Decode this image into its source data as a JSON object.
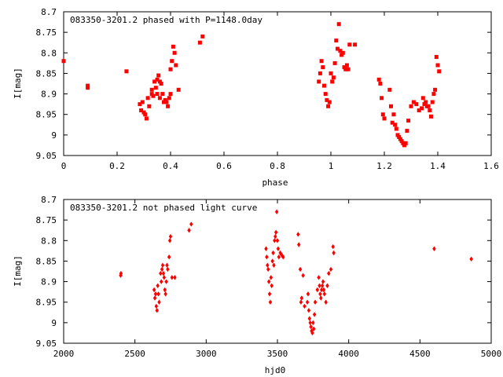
{
  "chart_data": [
    {
      "type": "scatter",
      "title": "083350-3201.2 phased with P=1148.0day",
      "xlabel": "phase",
      "ylabel": "I[mag]",
      "xlim": [
        0,
        1.6
      ],
      "ylim": [
        9.05,
        8.7
      ],
      "y_inverted": true,
      "grid": false,
      "legend": "none",
      "marker_color": "#ff0000",
      "x_ticks": [
        "0",
        "0.2",
        "0.4",
        "0.6",
        "0.8",
        "1",
        "1.2",
        "1.4",
        "1.6"
      ],
      "y_ticks": [
        "8.7",
        "8.75",
        "8.8",
        "8.85",
        "8.9",
        "8.95",
        "9",
        "9.05"
      ],
      "series": [
        {
          "x": [
            0.0,
            0.09,
            0.09,
            0.235,
            0.285,
            0.29,
            0.295,
            0.3,
            0.305,
            0.31,
            0.315,
            0.32,
            0.33,
            0.33,
            0.335,
            0.34,
            0.345,
            0.35,
            0.35,
            0.355,
            0.36,
            0.36,
            0.365,
            0.37,
            0.375,
            0.38,
            0.385,
            0.39,
            0.395,
            0.4,
            0.4,
            0.405,
            0.41,
            0.415,
            0.42,
            0.43,
            0.51,
            0.52,
            0.955,
            0.96,
            0.965,
            0.97,
            0.975,
            0.98,
            0.985,
            0.99,
            0.995,
            1.0,
            1.005,
            1.01,
            1.015,
            1.02,
            1.025,
            1.03,
            1.035,
            1.04,
            1.045,
            1.05,
            1.055,
            1.06,
            1.065,
            1.07,
            1.09,
            1.18,
            1.185,
            1.19,
            1.195,
            1.2,
            1.22,
            1.225,
            1.23,
            1.235,
            1.24,
            1.245,
            1.25,
            1.255,
            1.26,
            1.265,
            1.27,
            1.275,
            1.28,
            1.285,
            1.29,
            1.3,
            1.31,
            1.32,
            1.33,
            1.34,
            1.345,
            1.35,
            1.355,
            1.36,
            1.365,
            1.37,
            1.375,
            1.38,
            1.385,
            1.39,
            1.395,
            1.4,
            1.405
          ],
          "y": [
            8.82,
            8.88,
            8.885,
            8.845,
            8.925,
            8.94,
            8.92,
            8.945,
            8.95,
            8.96,
            8.91,
            8.93,
            8.9,
            8.89,
            8.905,
            8.87,
            8.885,
            8.865,
            8.9,
            8.855,
            8.87,
            8.91,
            8.875,
            8.9,
            8.92,
            8.915,
            8.92,
            8.93,
            8.91,
            8.9,
            8.84,
            8.82,
            8.785,
            8.8,
            8.83,
            8.89,
            8.775,
            8.76,
            8.87,
            8.85,
            8.82,
            8.835,
            8.88,
            8.9,
            8.915,
            8.93,
            8.92,
            8.85,
            8.87,
            8.86,
            8.825,
            8.77,
            8.79,
            8.73,
            8.795,
            8.805,
            8.8,
            8.835,
            8.84,
            8.83,
            8.84,
            8.78,
            8.78,
            8.865,
            8.875,
            8.91,
            8.95,
            8.96,
            8.89,
            8.93,
            8.97,
            8.95,
            8.975,
            8.985,
            9.0,
            9.005,
            9.01,
            9.015,
            9.02,
            9.025,
            9.02,
            8.99,
            8.965,
            8.93,
            8.92,
            8.925,
            8.94,
            8.935,
            8.91,
            8.925,
            8.92,
            8.93,
            8.93,
            8.94,
            8.955,
            8.92,
            8.9,
            8.89,
            8.81,
            8.83,
            8.845
          ]
        }
      ]
    },
    {
      "type": "scatter",
      "title": "083350-3201.2 not phased light curve",
      "xlabel": "hjd0",
      "ylabel": "I[mag]",
      "xlim": [
        2000,
        5000
      ],
      "ylim": [
        9.05,
        8.7
      ],
      "y_inverted": true,
      "grid": false,
      "legend": "none",
      "marker_color": "#ff0000",
      "x_ticks": [
        "2000",
        "2500",
        "3000",
        "3500",
        "4000",
        "4500",
        "5000"
      ],
      "y_ticks": [
        "8.7",
        "8.75",
        "8.8",
        "8.85",
        "8.9",
        "8.95",
        "9",
        "9.05"
      ],
      "series": [
        {
          "x": [
            2400,
            2402,
            2635,
            2640,
            2645,
            2650,
            2655,
            2660,
            2665,
            2670,
            2680,
            2685,
            2690,
            2695,
            2700,
            2705,
            2710,
            2715,
            2720,
            2725,
            2730,
            2740,
            2745,
            2750,
            2760,
            2780,
            2880,
            2895,
            3420,
            3425,
            3430,
            3435,
            3440,
            3445,
            3450,
            3455,
            3460,
            3465,
            3470,
            3475,
            3480,
            3485,
            3490,
            3495,
            3500,
            3505,
            3510,
            3520,
            3530,
            3540,
            3645,
            3650,
            3660,
            3665,
            3670,
            3680,
            3690,
            3710,
            3715,
            3720,
            3725,
            3730,
            3735,
            3740,
            3745,
            3750,
            3755,
            3760,
            3765,
            3780,
            3790,
            3795,
            3800,
            3805,
            3810,
            3815,
            3820,
            3825,
            3830,
            3840,
            3850,
            3860,
            3875,
            3890,
            3895,
            4600,
            4860
          ],
          "y": [
            8.885,
            8.88,
            8.92,
            8.94,
            8.93,
            8.96,
            8.97,
            8.91,
            8.93,
            8.95,
            8.88,
            8.9,
            8.87,
            8.86,
            8.88,
            8.89,
            8.92,
            8.93,
            8.9,
            8.86,
            8.87,
            8.84,
            8.8,
            8.79,
            8.89,
            8.89,
            8.775,
            8.76,
            8.82,
            8.84,
            8.86,
            8.87,
            8.9,
            8.93,
            8.95,
            8.89,
            8.91,
            8.85,
            8.83,
            8.86,
            8.8,
            8.79,
            8.78,
            8.73,
            8.8,
            8.82,
            8.84,
            8.83,
            8.835,
            8.84,
            8.785,
            8.81,
            8.87,
            8.95,
            8.94,
            8.885,
            8.96,
            8.95,
            8.93,
            8.97,
            8.99,
            9.0,
            9.01,
            9.02,
            9.025,
            9.0,
            9.015,
            8.98,
            8.95,
            8.92,
            8.89,
            8.91,
            8.93,
            8.94,
            8.92,
            8.91,
            8.9,
            8.92,
            8.93,
            8.95,
            8.91,
            8.88,
            8.87,
            8.815,
            8.83,
            8.82,
            8.845
          ]
        }
      ]
    }
  ]
}
